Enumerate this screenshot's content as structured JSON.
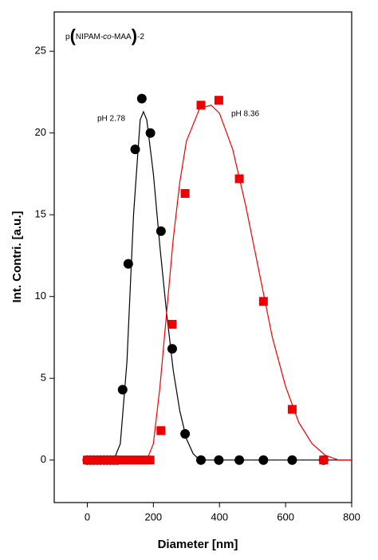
{
  "chart_data": {
    "type": "scatter",
    "annotation_parts": [
      "p",
      "(",
      "NIPAM-",
      "co",
      "-MAA",
      ")",
      "-2"
    ],
    "x_label": "Diameter [nm]",
    "y_label": "Int. Contri. [a.u.]",
    "xlim": [
      -100,
      800
    ],
    "ylim": [
      -2.6,
      27.4
    ],
    "xticks": [
      0,
      200,
      400,
      600,
      800
    ],
    "yticks": [
      0,
      5,
      10,
      15,
      20,
      25
    ],
    "series": [
      {
        "name": "pH 2.78",
        "color": "#000000",
        "marker": "circle",
        "x": [
          0,
          10,
          20,
          30,
          40,
          50,
          60,
          70,
          80,
          90,
          107,
          124,
          145,
          165,
          191,
          223,
          257,
          296,
          344,
          398,
          460,
          533,
          620,
          715
        ],
        "values": [
          0,
          0,
          0,
          0,
          0,
          0,
          0,
          0,
          0,
          0,
          4.3,
          12,
          19,
          22.1,
          20,
          14,
          6.8,
          1.6,
          0,
          0,
          0,
          0,
          0,
          0
        ],
        "fit": {
          "x": [
            0,
            80,
            100,
            120,
            140,
            160,
            170,
            180,
            200,
            220,
            240,
            260,
            280,
            300,
            320,
            340,
            400,
            800
          ],
          "values": [
            0,
            0,
            1,
            6,
            15,
            20.8,
            21.3,
            20.8,
            17.5,
            13,
            9,
            5.5,
            3,
            1.3,
            0.4,
            0,
            0,
            0
          ]
        }
      },
      {
        "name": "pH 8.36",
        "color": "#ee0000",
        "marker": "square",
        "x": [
          0,
          10,
          20,
          30,
          40,
          50,
          60,
          70,
          80,
          90,
          100,
          110,
          120,
          130,
          140,
          150,
          160,
          170,
          180,
          190,
          223,
          257,
          296,
          344,
          398,
          460,
          533,
          620,
          715
        ],
        "values": [
          0,
          0,
          0,
          0,
          0,
          0,
          0,
          0,
          0,
          0,
          0,
          0,
          0,
          0,
          0,
          0,
          0,
          0,
          0,
          0,
          1.8,
          8.3,
          16.3,
          21.7,
          22,
          17.2,
          9.7,
          3.1,
          0
        ],
        "fit": {
          "x": [
            180,
            200,
            220,
            240,
            260,
            280,
            300,
            340,
            375,
            400,
            440,
            480,
            520,
            560,
            600,
            640,
            680,
            720,
            760,
            800
          ],
          "values": [
            0,
            1,
            4.5,
            9,
            13.5,
            17,
            19.5,
            21.5,
            21.7,
            21.2,
            19,
            15.5,
            11.5,
            7.5,
            4.5,
            2.3,
            1,
            0.3,
            0,
            0
          ]
        }
      }
    ]
  }
}
